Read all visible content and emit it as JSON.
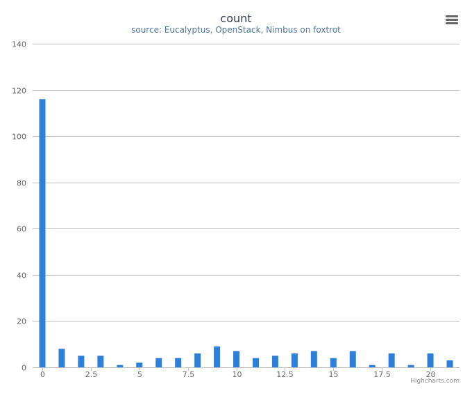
{
  "chart_data": {
    "type": "bar",
    "title": "count",
    "subtitle": "source: Eucalyptus, OpenStack, Nimbus on foxtrot",
    "x": [
      0,
      1,
      2,
      3,
      4,
      5,
      6,
      7,
      8,
      9,
      10,
      11,
      12,
      13,
      14,
      15,
      16,
      17,
      18,
      19,
      20,
      21
    ],
    "values": [
      116,
      8,
      5,
      5,
      1,
      2,
      4,
      4,
      6,
      9,
      7,
      4,
      5,
      6,
      7,
      4,
      7,
      1,
      6,
      1,
      6,
      3
    ],
    "xlim": [
      -0.5,
      21.5
    ],
    "x_ticks": [
      0,
      2.5,
      5,
      7.5,
      10,
      12.5,
      15,
      17.5,
      20
    ],
    "x_tick_labels": [
      "0",
      "2.5",
      "5",
      "7.5",
      "10",
      "12.5",
      "15",
      "17.5",
      "20"
    ],
    "ylim": [
      0,
      140
    ],
    "y_ticks": [
      0,
      20,
      40,
      60,
      80,
      100,
      120,
      140
    ],
    "y_tick_labels": [
      "0",
      "20",
      "40",
      "60",
      "80",
      "100",
      "120",
      "140"
    ],
    "grid": true,
    "bar_color": "#2f7ed8",
    "gridline_color": "#c0c0c0"
  },
  "credits": "Highcharts.com",
  "menu_icon": "hamburger-menu-icon"
}
